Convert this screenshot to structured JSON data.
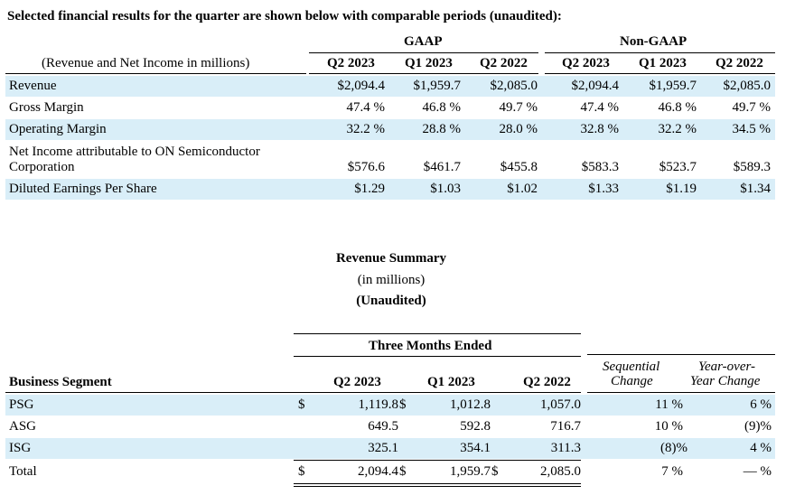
{
  "intro": "Selected financial results for the quarter are shown below with comparable periods (unaudited):",
  "table1": {
    "group_gaap": "GAAP",
    "group_nongaap": "Non-GAAP",
    "units_note": "(Revenue and Net Income in millions)",
    "columns": [
      "Q2 2023",
      "Q1 2023",
      "Q2 2022",
      "Q2 2023",
      "Q1 2023",
      "Q2 2022"
    ],
    "rows": [
      {
        "label": "Revenue",
        "values": [
          "$2,094.4",
          "$1,959.7",
          "$2,085.0",
          "$2,094.4",
          "$1,959.7",
          "$2,085.0"
        ]
      },
      {
        "label": "Gross Margin",
        "values": [
          "47.4 %",
          "46.8 %",
          "49.7 %",
          "47.4 %",
          "46.8 %",
          "49.7 %"
        ]
      },
      {
        "label": "Operating Margin",
        "values": [
          "32.2 %",
          "28.8 %",
          "28.0 %",
          "32.8 %",
          "32.2 %",
          "34.5 %"
        ]
      },
      {
        "label_line1": "Net Income attributable to ON Semiconductor",
        "label_line2": "Corporation",
        "values": [
          "$576.6",
          "$461.7",
          "$455.8",
          "$583.3",
          "$523.7",
          "$589.3"
        ]
      },
      {
        "label": "Diluted Earnings Per Share",
        "values": [
          "$1.29",
          "$1.03",
          "$1.02",
          "$1.33",
          "$1.19",
          "$1.34"
        ]
      }
    ]
  },
  "summary": {
    "title": "Revenue Summary",
    "subtitle": "(in millions)",
    "unaudited": "(Unaudited)"
  },
  "table2": {
    "group": "Three Months Ended",
    "segment_header": "Business Segment",
    "columns": [
      "Q2 2023",
      "Q1 2023",
      "Q2 2022"
    ],
    "seq_header_line1": "Sequential",
    "seq_header_line2": "Change",
    "yoy_header_line1": "Year-over-",
    "yoy_header_line2": "Year Change",
    "currency": "$",
    "rows": [
      {
        "label": "PSG",
        "dollar": true,
        "values": [
          "1,119.8",
          "1,012.8",
          "1,057.0"
        ],
        "seq": "11 %",
        "yoy": "6 %"
      },
      {
        "label": "ASG",
        "dollar": false,
        "values": [
          "649.5",
          "592.8",
          "716.7"
        ],
        "seq": "10 %",
        "yoy": "(9)%"
      },
      {
        "label": "ISG",
        "dollar": false,
        "values": [
          "325.1",
          "354.1",
          "311.3"
        ],
        "seq": "(8)%",
        "yoy": "4 %"
      },
      {
        "label": "Total",
        "dollar": true,
        "values": [
          "2,094.4",
          "1,959.7",
          "2,085.0"
        ],
        "seq": "7 %",
        "yoy": "— %"
      }
    ]
  }
}
